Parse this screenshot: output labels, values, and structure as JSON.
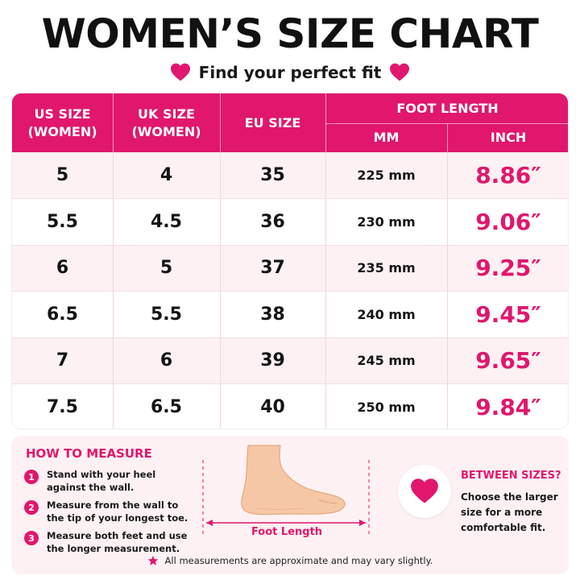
{
  "header": {
    "title": "WOMEN’S SIZE CHART",
    "subtitle": "Find your perfect fit"
  },
  "colors": {
    "accent": "#e0176d",
    "row_tint": "#fdf1f3"
  },
  "table": {
    "headers": {
      "us_line1": "US SIZE",
      "us_line2": "(WOMEN)",
      "uk_line1": "UK SIZE",
      "uk_line2": "(WOMEN)",
      "eu": "EU SIZE",
      "foot_length": "FOOT LENGTH",
      "mm": "MM",
      "inch": "INCH"
    },
    "rows": [
      {
        "us": "5",
        "uk": "4",
        "eu": "35",
        "mm": "225 mm",
        "inch": "8.86″"
      },
      {
        "us": "5.5",
        "uk": "4.5",
        "eu": "36",
        "mm": "230 mm",
        "inch": "9.06″"
      },
      {
        "us": "6",
        "uk": "5",
        "eu": "37",
        "mm": "235 mm",
        "inch": "9.25″"
      },
      {
        "us": "6.5",
        "uk": "5.5",
        "eu": "38",
        "mm": "240 mm",
        "inch": "9.45″"
      },
      {
        "us": "7",
        "uk": "6",
        "eu": "39",
        "mm": "245 mm",
        "inch": "9.65″"
      },
      {
        "us": "7.5",
        "uk": "6.5",
        "eu": "40",
        "mm": "250 mm",
        "inch": "9.84″"
      }
    ]
  },
  "how_to_measure": {
    "title": "HOW TO MEASURE",
    "steps": [
      {
        "num": "1",
        "text": "Stand with your heel against the wall."
      },
      {
        "num": "2",
        "text": "Measure from the wall to the tip of your longest toe."
      },
      {
        "num": "3",
        "text": "Measure both feet and use the longer measurement."
      }
    ]
  },
  "illustration": {
    "icon": "foot-icon",
    "label": "Foot Length"
  },
  "between_sizes": {
    "icon": "heart-icon",
    "title": "BETWEEN SIZES?",
    "text": "Choose the larger size for a more comfortable fit."
  },
  "footnote": {
    "icon": "star-icon",
    "text": "All measurements are approximate and may vary slightly."
  }
}
